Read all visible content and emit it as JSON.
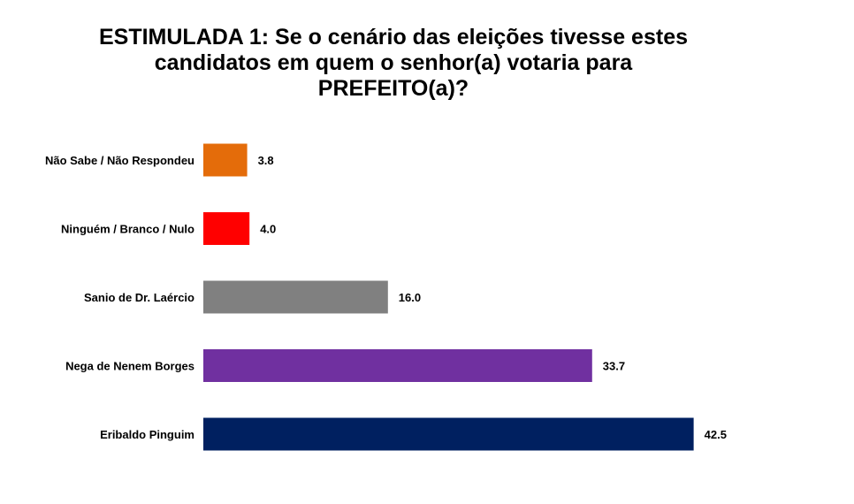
{
  "chart_data": {
    "type": "bar",
    "orientation": "horizontal",
    "title_lines": [
      "ESTIMULADA 1: Se o cenário das eleições tivesse estes",
      "candidatos em quem o senhor(a) votaria para",
      "PREFEITO(a)?"
    ],
    "categories": [
      "Não Sabe / Não Respondeu",
      "Ninguém / Branco / Nulo",
      "Sanio de Dr. Laércio",
      "Nega de Nenem Borges",
      "Eribaldo Pinguim"
    ],
    "values": [
      3.8,
      4.0,
      16.0,
      33.7,
      42.5
    ],
    "value_labels": [
      "3.8",
      "4.0",
      "16.0",
      "33.7",
      "42.5"
    ],
    "colors": [
      "#E46C0A",
      "#FF0000",
      "#808080",
      "#7030A0",
      "#002060"
    ],
    "grid": false,
    "legend": "none"
  }
}
